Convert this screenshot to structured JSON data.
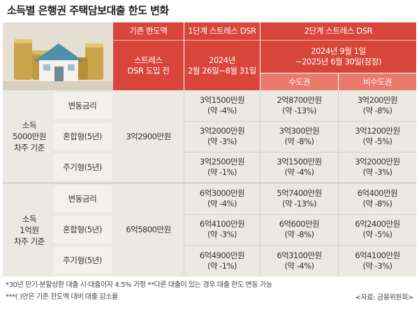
{
  "title": "소득별 은행권 주택담보대출 한도 변화",
  "header": {
    "col_base_top": "기존 한도액",
    "col_base_sub": "스트레스\nDSR 도입 전",
    "col_stage1_top": "1단계 스트레스 DSR",
    "col_stage1_sub": "2024년\n2월 26일~8월 31일",
    "col_stage2_top": "2단계 스트레스 DSR",
    "col_stage2_sub": "2024년 9월 1일\n~2025년 6월 30일(잠정)",
    "col_capital": "수도권",
    "col_noncapital": "비수도권"
  },
  "groups": [
    {
      "label": "소득\n5000만원\n차주 기준",
      "base": "3억2900만원",
      "rows": [
        {
          "type": "변동금리",
          "stage1": "3억1500만원",
          "stage1_pct": "(약 -4%)",
          "capital": "2억8700만원",
          "capital_pct": "(약 -13%)",
          "noncapital": "3억200만원",
          "noncapital_pct": "(약 -8%)"
        },
        {
          "type": "혼합형(5년)",
          "stage1": "3억2000만원",
          "stage1_pct": "(약 -3%)",
          "capital": "3억300만원",
          "capital_pct": "(약 -8%)",
          "noncapital": "3억1200만원",
          "noncapital_pct": "(약 -5%)"
        },
        {
          "type": "주기형(5년)",
          "stage1": "3억2500만원",
          "stage1_pct": "(약 -1%)",
          "capital": "3억1500만원",
          "capital_pct": "(약 -4%)",
          "noncapital": "3억2000만원",
          "noncapital_pct": "(약 -3%)"
        }
      ]
    },
    {
      "label": "소득\n1억원\n차주 기준",
      "base": "6억5800만원",
      "rows": [
        {
          "type": "변동금리",
          "stage1": "6억3000만원",
          "stage1_pct": "(약 -4%)",
          "capital": "5억7400만원",
          "capital_pct": "(약 -13%)",
          "noncapital": "6억400만원",
          "noncapital_pct": "(약 -8%)"
        },
        {
          "type": "혼합형(5년)",
          "stage1": "6억4100만원",
          "stage1_pct": "(약 -3%)",
          "capital": "6억600만원",
          "capital_pct": "(약 -8%)",
          "noncapital": "6억2400만원",
          "noncapital_pct": "(약 -5%)"
        },
        {
          "type": "주기형(5년)",
          "stage1": "6억4900만원",
          "stage1_pct": "(약 -1%)",
          "capital": "6억3100만원",
          "capital_pct": "(약 -4%)",
          "noncapital": "6억4100만원",
          "noncapital_pct": "(약 -3%)"
        }
      ]
    }
  ],
  "notes": {
    "note1": "*30년 만기·분할상환 대출 시·대출이자 4.5% 가정",
    "note2": "**다른 대출이 있는 경우 대출 한도 변동 가능",
    "note3": "***(  )안은 기존 한도액 대비 대출 감소율"
  },
  "source": "<자료: 금융위원회>",
  "colors": {
    "header_dark": "#d8463b",
    "header_light": "#ea7a6c",
    "panel": "#ece8e2"
  }
}
